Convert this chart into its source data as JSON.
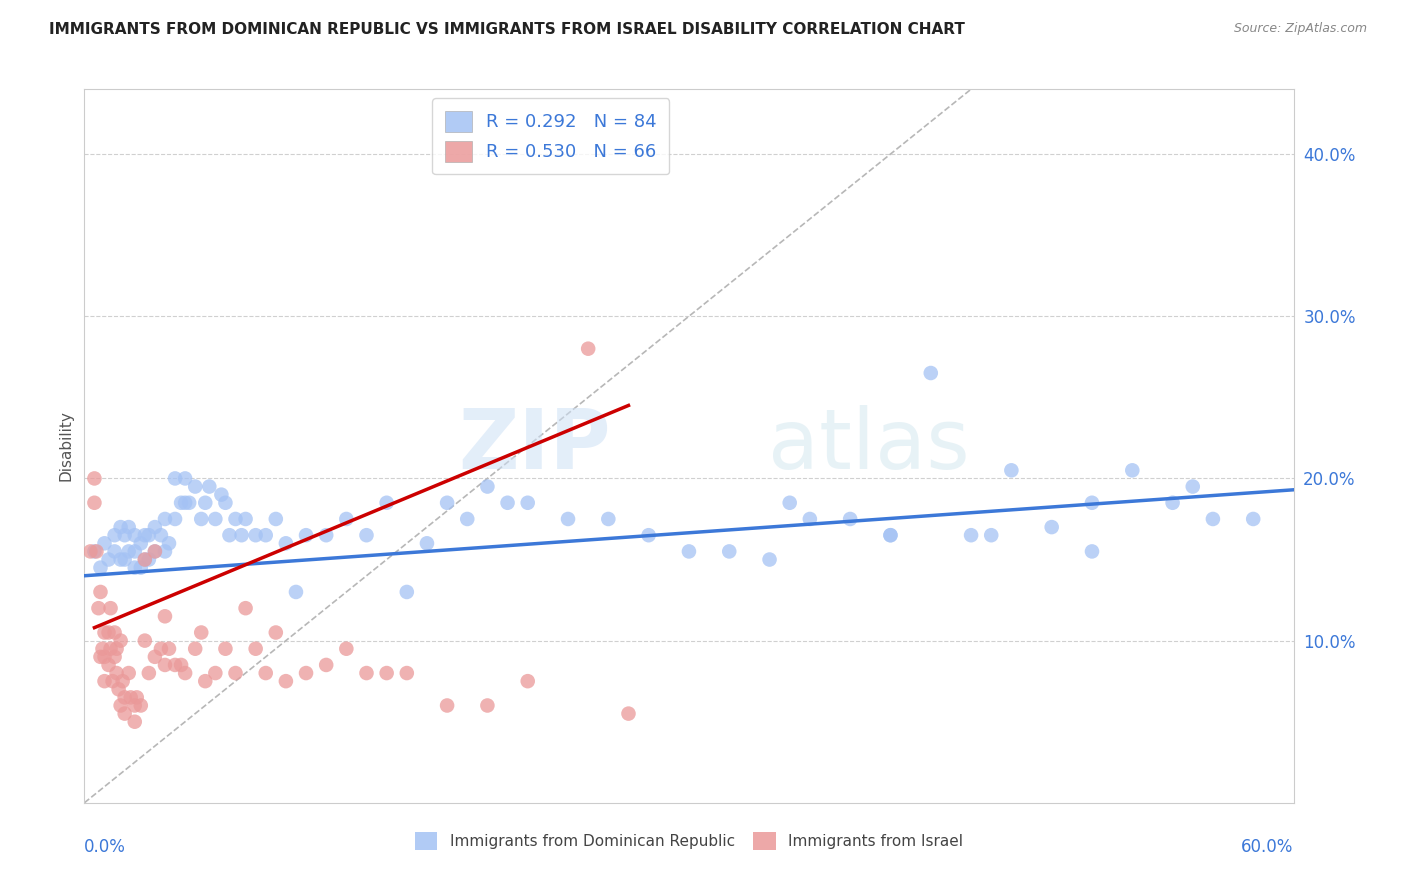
{
  "title": "IMMIGRANTS FROM DOMINICAN REPUBLIC VS IMMIGRANTS FROM ISRAEL DISABILITY CORRELATION CHART",
  "source": "Source: ZipAtlas.com",
  "ylabel": "Disability",
  "xlim": [
    0.0,
    0.6
  ],
  "ylim": [
    0.0,
    0.44
  ],
  "series1_color": "#a4c2f4",
  "series2_color": "#ea9999",
  "trendline1_color": "#3c78d8",
  "trendline2_color": "#cc0000",
  "diagonal_color": "#b7b7b7",
  "watermark_zip": "ZIP",
  "watermark_atlas": "atlas",
  "R1": 0.292,
  "N1": 84,
  "R2": 0.53,
  "N2": 66,
  "series1_x": [
    0.005,
    0.008,
    0.01,
    0.012,
    0.015,
    0.015,
    0.018,
    0.018,
    0.02,
    0.02,
    0.022,
    0.022,
    0.025,
    0.025,
    0.025,
    0.028,
    0.028,
    0.03,
    0.03,
    0.032,
    0.032,
    0.035,
    0.035,
    0.038,
    0.04,
    0.04,
    0.042,
    0.045,
    0.045,
    0.048,
    0.05,
    0.05,
    0.052,
    0.055,
    0.058,
    0.06,
    0.062,
    0.065,
    0.068,
    0.07,
    0.072,
    0.075,
    0.078,
    0.08,
    0.085,
    0.09,
    0.095,
    0.1,
    0.105,
    0.11,
    0.12,
    0.13,
    0.14,
    0.15,
    0.16,
    0.17,
    0.18,
    0.19,
    0.2,
    0.21,
    0.22,
    0.24,
    0.26,
    0.28,
    0.3,
    0.32,
    0.34,
    0.36,
    0.38,
    0.4,
    0.42,
    0.44,
    0.46,
    0.48,
    0.5,
    0.52,
    0.54,
    0.56,
    0.58,
    0.35,
    0.4,
    0.45,
    0.5,
    0.55
  ],
  "series1_y": [
    0.155,
    0.145,
    0.16,
    0.15,
    0.165,
    0.155,
    0.17,
    0.15,
    0.165,
    0.15,
    0.17,
    0.155,
    0.165,
    0.155,
    0.145,
    0.16,
    0.145,
    0.165,
    0.15,
    0.165,
    0.15,
    0.155,
    0.17,
    0.165,
    0.175,
    0.155,
    0.16,
    0.2,
    0.175,
    0.185,
    0.185,
    0.2,
    0.185,
    0.195,
    0.175,
    0.185,
    0.195,
    0.175,
    0.19,
    0.185,
    0.165,
    0.175,
    0.165,
    0.175,
    0.165,
    0.165,
    0.175,
    0.16,
    0.13,
    0.165,
    0.165,
    0.175,
    0.165,
    0.185,
    0.13,
    0.16,
    0.185,
    0.175,
    0.195,
    0.185,
    0.185,
    0.175,
    0.175,
    0.165,
    0.155,
    0.155,
    0.15,
    0.175,
    0.175,
    0.165,
    0.265,
    0.165,
    0.205,
    0.17,
    0.155,
    0.205,
    0.185,
    0.175,
    0.175,
    0.185,
    0.165,
    0.165,
    0.185,
    0.195
  ],
  "series2_x": [
    0.003,
    0.005,
    0.005,
    0.006,
    0.007,
    0.008,
    0.008,
    0.009,
    0.01,
    0.01,
    0.01,
    0.012,
    0.012,
    0.013,
    0.013,
    0.014,
    0.015,
    0.015,
    0.016,
    0.016,
    0.017,
    0.018,
    0.018,
    0.019,
    0.02,
    0.02,
    0.022,
    0.023,
    0.025,
    0.025,
    0.026,
    0.028,
    0.03,
    0.03,
    0.032,
    0.035,
    0.035,
    0.038,
    0.04,
    0.04,
    0.042,
    0.045,
    0.048,
    0.05,
    0.055,
    0.058,
    0.06,
    0.065,
    0.07,
    0.075,
    0.08,
    0.085,
    0.09,
    0.095,
    0.1,
    0.11,
    0.12,
    0.13,
    0.14,
    0.15,
    0.16,
    0.18,
    0.2,
    0.22,
    0.25,
    0.27
  ],
  "series2_y": [
    0.155,
    0.2,
    0.185,
    0.155,
    0.12,
    0.13,
    0.09,
    0.095,
    0.105,
    0.09,
    0.075,
    0.105,
    0.085,
    0.12,
    0.095,
    0.075,
    0.105,
    0.09,
    0.095,
    0.08,
    0.07,
    0.06,
    0.1,
    0.075,
    0.065,
    0.055,
    0.08,
    0.065,
    0.06,
    0.05,
    0.065,
    0.06,
    0.15,
    0.1,
    0.08,
    0.155,
    0.09,
    0.095,
    0.115,
    0.085,
    0.095,
    0.085,
    0.085,
    0.08,
    0.095,
    0.105,
    0.075,
    0.08,
    0.095,
    0.08,
    0.12,
    0.095,
    0.08,
    0.105,
    0.075,
    0.08,
    0.085,
    0.095,
    0.08,
    0.08,
    0.08,
    0.06,
    0.06,
    0.075,
    0.28,
    0.055
  ],
  "trendline1_x": [
    0.0,
    0.6
  ],
  "trendline1_y": [
    0.14,
    0.193
  ],
  "trendline2_x": [
    0.005,
    0.27
  ],
  "trendline2_y": [
    0.108,
    0.245
  ]
}
